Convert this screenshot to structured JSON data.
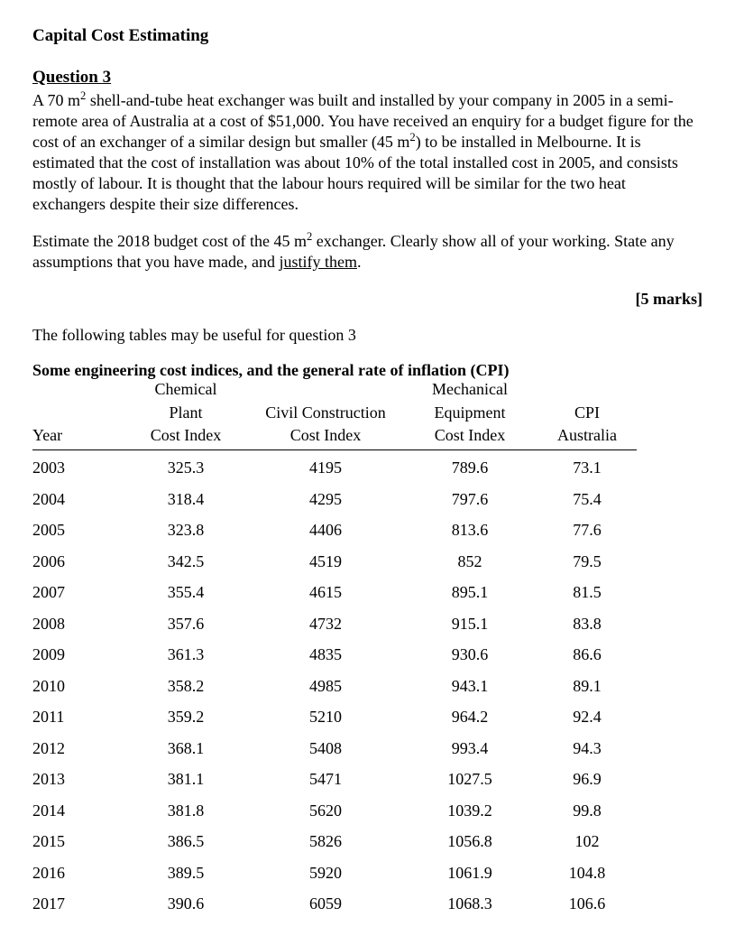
{
  "title": "Capital Cost Estimating",
  "question_label": "Question 3",
  "para1_pre": "A 70 m",
  "para1_sup1": "2",
  "para1_mid": " shell-and-tube heat exchanger was built and installed by your company in 2005 in a semi-remote area of Australia at a cost of $51,000. You have received an enquiry for a budget figure for the cost of an exchanger of a similar design but smaller (45 m",
  "para1_sup2": "2",
  "para1_post": ") to be installed in Melbourne. It is estimated that the cost of installation was about 10% of the total installed cost in 2005, and consists mostly of labour. It is thought that the labour hours required will be similar for the two heat exchangers despite their size differences.",
  "para2_pre": "Estimate the 2018 budget cost of the 45 m",
  "para2_sup": "2",
  "para2_mid": " exchanger. Clearly show all of your working. State any assumptions that you have made, and ",
  "para2_ul": "justify them",
  "para2_post": ".",
  "marks": "[5 marks]",
  "tables_intro": "The following tables may be useful for question 3",
  "table_title": "Some engineering cost indices, and the general rate of inflation (CPI)",
  "headers": {
    "year": "Year",
    "chem1": "Chemical",
    "chem2": "Plant",
    "chem3": "Cost Index",
    "civil1": "Civil Construction",
    "civil2": "Cost Index",
    "mech1": "Mechanical",
    "mech2": "Equipment",
    "mech3": "Cost Index",
    "cpi1": "CPI",
    "cpi2": "Australia"
  },
  "col_widths": {
    "year": 90,
    "chem": 140,
    "civil": 170,
    "mech": 150,
    "cpi": 110
  },
  "rows": [
    {
      "year": "2003",
      "chem": "325.3",
      "civil": "4195",
      "mech": "789.6",
      "cpi": "73.1"
    },
    {
      "year": "2004",
      "chem": "318.4",
      "civil": "4295",
      "mech": "797.6",
      "cpi": "75.4"
    },
    {
      "year": "2005",
      "chem": "323.8",
      "civil": "4406",
      "mech": "813.6",
      "cpi": "77.6"
    },
    {
      "year": "2006",
      "chem": "342.5",
      "civil": "4519",
      "mech": "852",
      "cpi": "79.5"
    },
    {
      "year": "2007",
      "chem": "355.4",
      "civil": "4615",
      "mech": "895.1",
      "cpi": "81.5"
    },
    {
      "year": "2008",
      "chem": "357.6",
      "civil": "4732",
      "mech": "915.1",
      "cpi": "83.8"
    },
    {
      "year": "2009",
      "chem": "361.3",
      "civil": "4835",
      "mech": "930.6",
      "cpi": "86.6"
    },
    {
      "year": "2010",
      "chem": "358.2",
      "civil": "4985",
      "mech": "943.1",
      "cpi": "89.1"
    },
    {
      "year": "2011",
      "chem": "359.2",
      "civil": "5210",
      "mech": "964.2",
      "cpi": "92.4"
    },
    {
      "year": "2012",
      "chem": "368.1",
      "civil": "5408",
      "mech": "993.4",
      "cpi": "94.3"
    },
    {
      "year": "2013",
      "chem": "381.1",
      "civil": "5471",
      "mech": "1027.5",
      "cpi": "96.9"
    },
    {
      "year": "2014",
      "chem": "381.8",
      "civil": "5620",
      "mech": "1039.2",
      "cpi": "99.8"
    },
    {
      "year": "2015",
      "chem": "386.5",
      "civil": "5826",
      "mech": "1056.8",
      "cpi": "102"
    },
    {
      "year": "2016",
      "chem": "389.5",
      "civil": "5920",
      "mech": "1061.9",
      "cpi": "104.8"
    },
    {
      "year": "2017",
      "chem": "390.6",
      "civil": "6059",
      "mech": "1068.3",
      "cpi": "106.6"
    }
  ]
}
